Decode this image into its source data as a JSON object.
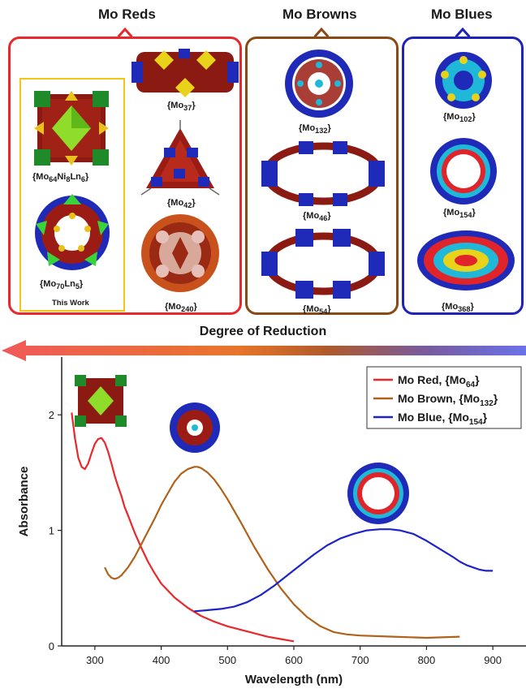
{
  "groups": {
    "reds": {
      "title": "Mo Reds",
      "color": "#e8282b"
    },
    "browns": {
      "title": "Mo Browns",
      "color": "#8a4a16"
    },
    "blues": {
      "title": "Mo Blues",
      "color": "#1f24b8"
    }
  },
  "structures": {
    "mo64": {
      "base": "{Mo",
      "sub": "64",
      "mid": "Ni",
      "sub2": "8",
      "mid2": "Ln",
      "sub3": "6",
      "end": "}"
    },
    "mo70": {
      "base": "{Mo",
      "sub": "70",
      "mid": "Ln",
      "sub2": "5",
      "end": "}"
    },
    "this_work": "This Work",
    "mo37": {
      "base": "{Mo",
      "sub": "37",
      "end": "}"
    },
    "mo42": {
      "base": "{Mo",
      "sub": "42",
      "end": "}"
    },
    "mo240": {
      "base": "{Mo",
      "sub": "240",
      "end": "}"
    },
    "mo132": {
      "base": "{Mo",
      "sub": "132",
      "end": "}"
    },
    "mo46": {
      "base": "{Mo",
      "sub": "46",
      "end": "}"
    },
    "mo54": {
      "base": "{Mo",
      "sub": "54",
      "end": "}"
    },
    "mo102": {
      "base": "{Mo",
      "sub": "102",
      "end": "}"
    },
    "mo154": {
      "base": "{Mo",
      "sub": "154",
      "end": "}"
    },
    "mo368": {
      "base": "{Mo",
      "sub": "368",
      "end": "}"
    }
  },
  "arrow": {
    "label": "Degree of Reduction"
  },
  "chart_data": {
    "type": "line",
    "xlabel": "Wavelength (nm)",
    "ylabel": "Absorbance",
    "xlim": [
      250,
      950
    ],
    "ylim": [
      0,
      2.5
    ],
    "xticks": [
      300,
      400,
      500,
      600,
      700,
      800,
      900
    ],
    "yticks": [
      0,
      1,
      2
    ],
    "legend_position": "top-right",
    "series": [
      {
        "name": "Mo Red, {Mo64}",
        "legend_base": "Mo Red, {Mo",
        "legend_sub": "64",
        "legend_end": "}",
        "color": "#e8282b",
        "x": [
          265,
          270,
          275,
          280,
          285,
          290,
          295,
          300,
          305,
          310,
          315,
          320,
          325,
          330,
          335,
          340,
          345,
          350,
          360,
          370,
          380,
          390,
          400,
          420,
          440,
          460,
          480,
          500,
          520,
          540,
          560,
          580,
          600
        ],
        "y": [
          2.02,
          1.8,
          1.63,
          1.55,
          1.53,
          1.58,
          1.67,
          1.75,
          1.79,
          1.8,
          1.76,
          1.68,
          1.58,
          1.47,
          1.38,
          1.3,
          1.2,
          1.13,
          0.98,
          0.85,
          0.73,
          0.63,
          0.54,
          0.42,
          0.33,
          0.26,
          0.21,
          0.17,
          0.14,
          0.11,
          0.08,
          0.06,
          0.04
        ]
      },
      {
        "name": "Mo Brown, {Mo132}",
        "legend_base": "Mo Brown, {Mo",
        "legend_sub": "132",
        "legend_end": "}",
        "color": "#b0621a",
        "x": [
          315,
          320,
          325,
          330,
          335,
          340,
          350,
          360,
          370,
          380,
          390,
          400,
          410,
          420,
          430,
          440,
          450,
          455,
          460,
          470,
          480,
          490,
          500,
          520,
          540,
          560,
          580,
          600,
          620,
          640,
          660,
          680,
          700,
          750,
          800,
          850
        ],
        "y": [
          0.68,
          0.62,
          0.59,
          0.58,
          0.59,
          0.61,
          0.68,
          0.77,
          0.88,
          0.99,
          1.1,
          1.22,
          1.32,
          1.42,
          1.49,
          1.53,
          1.55,
          1.55,
          1.54,
          1.5,
          1.44,
          1.36,
          1.27,
          1.07,
          0.86,
          0.67,
          0.5,
          0.36,
          0.25,
          0.17,
          0.12,
          0.1,
          0.09,
          0.08,
          0.07,
          0.08
        ]
      },
      {
        "name": "Mo Blue, {Mo154}",
        "legend_base": "Mo Blue, {Mo",
        "legend_sub": "154",
        "legend_end": "}",
        "color": "#1f24c8",
        "x": [
          450,
          470,
          490,
          510,
          530,
          550,
          570,
          590,
          610,
          630,
          650,
          670,
          690,
          710,
          730,
          745,
          760,
          780,
          800,
          820,
          840,
          850,
          860,
          870,
          880,
          890,
          900
        ],
        "y": [
          0.3,
          0.31,
          0.32,
          0.34,
          0.38,
          0.44,
          0.52,
          0.61,
          0.7,
          0.79,
          0.87,
          0.93,
          0.97,
          1.0,
          1.01,
          1.01,
          1.0,
          0.97,
          0.91,
          0.84,
          0.77,
          0.73,
          0.7,
          0.68,
          0.66,
          0.65,
          0.65
        ]
      }
    ]
  }
}
